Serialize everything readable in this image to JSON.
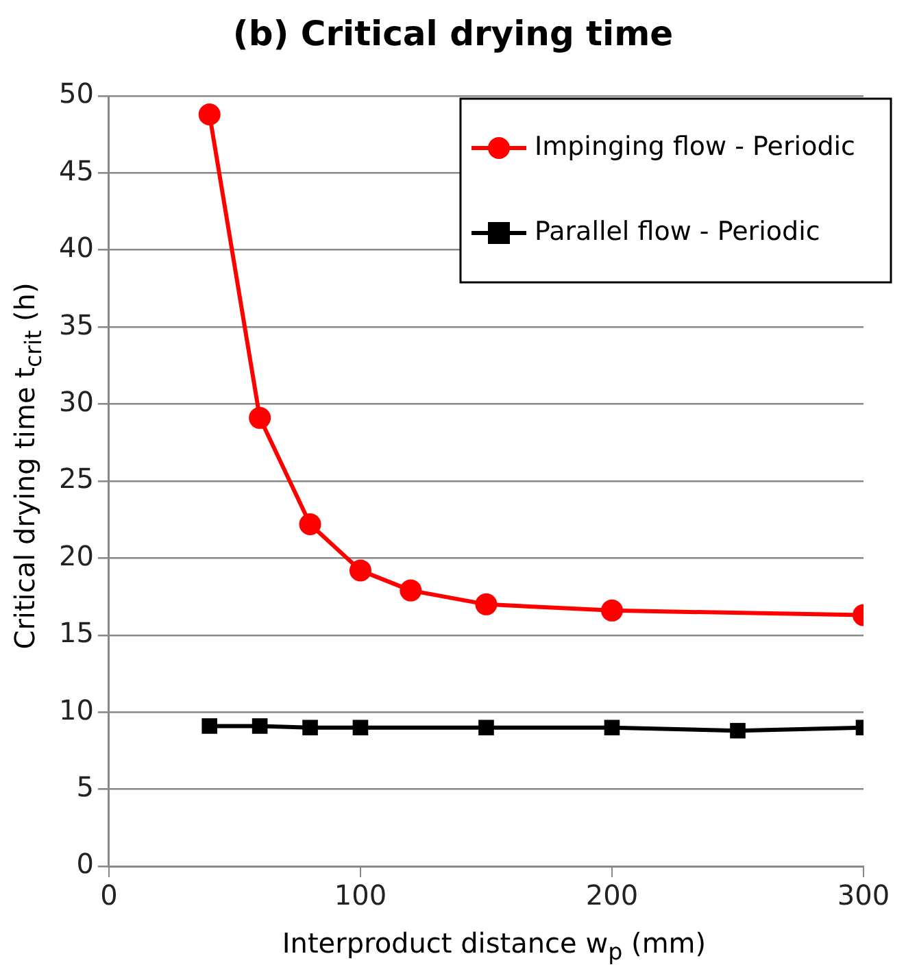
{
  "chart_data": {
    "type": "line",
    "title": "(b) Critical drying time",
    "xlabel": "Interproduct distance w$_{p}$ (mm)",
    "ylabel": "Critical drying time t$_{crit}$ (h)",
    "xlim": [
      0,
      300
    ],
    "xticks": [
      0,
      100,
      200,
      300
    ],
    "ylim": [
      0,
      50
    ],
    "yticks": [
      0,
      5,
      10,
      15,
      20,
      25,
      30,
      35,
      40,
      45,
      50
    ],
    "grid": "y",
    "legend": "top right",
    "line_style": "solid",
    "series": [
      {
        "name": "Impinging flow - Periodic",
        "color": "#ff0000",
        "marker": "circle",
        "x": [
          40,
          60,
          80,
          100,
          120,
          150,
          200,
          300
        ],
        "values": [
          48.8,
          29.1,
          22.2,
          19.2,
          17.9,
          17.0,
          16.6,
          16.3
        ]
      },
      {
        "name": "Parallel flow - Periodic",
        "color": "#000000",
        "marker": "square",
        "x": [
          40,
          60,
          80,
          100,
          150,
          200,
          250,
          300
        ],
        "values": [
          9.1,
          9.1,
          9.0,
          9.0,
          9.0,
          9.0,
          8.8,
          9.0
        ]
      }
    ]
  }
}
